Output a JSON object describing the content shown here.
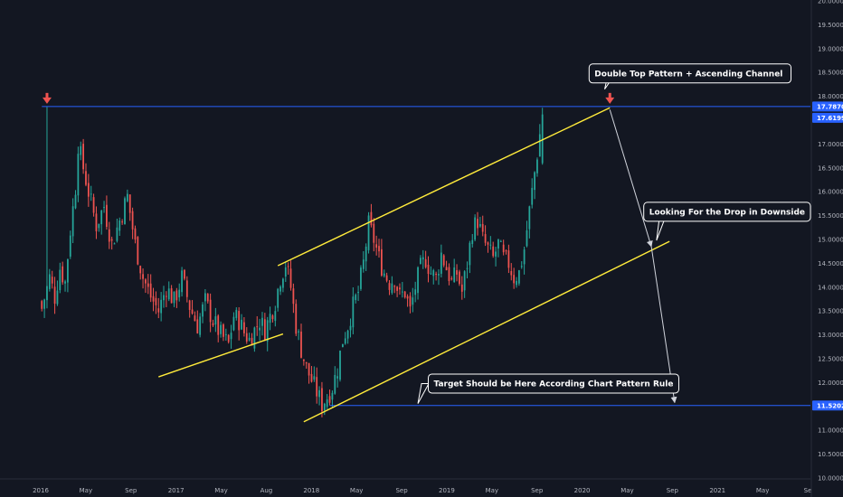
{
  "chart_data": {
    "type": "candlestick",
    "title": "",
    "instrument": "",
    "y_axis": {
      "ticks": [
        "20.00000",
        "19.50000",
        "19.00000",
        "18.50000",
        "18.00000",
        "17.50000",
        "17.00000",
        "16.50000",
        "16.00000",
        "15.50000",
        "15.00000",
        "14.50000",
        "14.00000",
        "13.50000",
        "13.00000",
        "12.50000",
        "12.00000",
        "11.50000",
        "11.00000",
        "10.50000",
        "10.00000"
      ],
      "ylim": [
        10.0,
        20.0
      ]
    },
    "x_axis": {
      "ticks": [
        "2016",
        "May",
        "Sep",
        "2017",
        "May",
        "Aug",
        "2018",
        "May",
        "Sep",
        "2019",
        "May",
        "Sep",
        "2020",
        "May",
        "Sep",
        "2021",
        "May",
        "Se"
      ],
      "start": "2016-01-04",
      "end": "2021-10-01"
    },
    "price_labels": [
      {
        "name": "resistance",
        "text": "17.78703",
        "value": 17.78703,
        "color": "#2962ff"
      },
      {
        "name": "last-price",
        "text": "17.61990",
        "value": 17.6199,
        "color": "#2962ff"
      },
      {
        "name": "target",
        "text": "11.52027",
        "value": 11.52027,
        "color": "#2962ff"
      }
    ],
    "horizontal_lines": [
      {
        "name": "resistance-line",
        "value": 17.78703,
        "from": "2016-01-04",
        "to": "2021-10-01",
        "color": "#2962ff"
      },
      {
        "name": "target-line",
        "value": 11.52027,
        "from": "2018-02-19",
        "to": "2021-10-01",
        "color": "#2962ff"
      }
    ],
    "trend_lines": [
      {
        "name": "channel-upper",
        "from": {
          "date": "2017-10-02",
          "value": 14.45
        },
        "to": {
          "date": "2020-03-16",
          "value": 17.76
        },
        "color": "#ffeb3b"
      },
      {
        "name": "channel-lower",
        "from": {
          "date": "2017-12-11",
          "value": 11.18
        },
        "to": {
          "date": "2020-08-24",
          "value": 14.96
        },
        "color": "#ffeb3b"
      },
      {
        "name": "left-support",
        "from": {
          "date": "2016-11-14",
          "value": 12.12
        },
        "to": {
          "date": "2017-10-16",
          "value": 13.02
        },
        "color": "#ffeb3b"
      }
    ],
    "arrows": [
      {
        "name": "drop-arrow-1",
        "from": {
          "date": "2020-03-16",
          "value": 17.72
        },
        "to": {
          "date": "2020-07-06",
          "value": 14.85
        }
      },
      {
        "name": "drop-arrow-2",
        "from": {
          "date": "2020-07-06",
          "value": 14.85
        },
        "to": {
          "date": "2020-09-07",
          "value": 11.58
        }
      }
    ],
    "markers": [
      {
        "name": "top-marker-1",
        "date": "2016-01-18",
        "value": 17.78703
      },
      {
        "name": "top-marker-2",
        "date": "2020-03-16",
        "value": 17.78703
      }
    ],
    "annotations": [
      {
        "name": "double-top-callout",
        "text": "Double Top Pattern  + Ascending Channel",
        "date": "2020-01-20",
        "value": 18.48,
        "pointer": {
          "date": "2020-03-02",
          "value": 18.15
        }
      },
      {
        "name": "drop-callout",
        "text": "Looking For the Drop in Downside",
        "date": "2020-09-07",
        "value": 15.58,
        "pointer": {
          "date": "2020-07-20",
          "value": 14.98
        }
      },
      {
        "name": "target-callout",
        "text": "Target Should be Here According Chart Pattern Rule",
        "date": "2018-11-12",
        "value": 11.98,
        "pointer": {
          "date": "2018-10-15",
          "value": 11.56
        }
      }
    ],
    "closes": [
      [
        0,
        13.55
      ],
      [
        3,
        14.2
      ],
      [
        5,
        13.8
      ],
      [
        7,
        14.4
      ],
      [
        9,
        14.1
      ],
      [
        11,
        15.2
      ],
      [
        13,
        16.1
      ],
      [
        14,
        17.0
      ],
      [
        16,
        16.5
      ],
      [
        18,
        16.0
      ],
      [
        21,
        15.3
      ],
      [
        24,
        15.7
      ],
      [
        27,
        14.9
      ],
      [
        30,
        15.4
      ],
      [
        33,
        15.9
      ],
      [
        36,
        14.9
      ],
      [
        39,
        14.2
      ],
      [
        42,
        13.8
      ],
      [
        45,
        13.5
      ],
      [
        48,
        14.0
      ],
      [
        51,
        13.7
      ],
      [
        54,
        14.2
      ],
      [
        57,
        13.6
      ],
      [
        60,
        13.2
      ],
      [
        63,
        13.7
      ],
      [
        66,
        13.3
      ],
      [
        69,
        13.0
      ],
      [
        72,
        12.8
      ],
      [
        74,
        13.4
      ],
      [
        76,
        13.3
      ],
      [
        78,
        13.05
      ],
      [
        80,
        12.9
      ],
      [
        82,
        13.1
      ],
      [
        84,
        13.3
      ],
      [
        86,
        13.1
      ],
      [
        88,
        13.4
      ],
      [
        90,
        13.7
      ],
      [
        92,
        14.2
      ],
      [
        94,
        14.5
      ],
      [
        96,
        14.0
      ],
      [
        98,
        13.2
      ],
      [
        100,
        12.7
      ],
      [
        102,
        12.3
      ],
      [
        104,
        12.05
      ],
      [
        106,
        11.8
      ],
      [
        108,
        11.55
      ],
      [
        110,
        11.7
      ],
      [
        112,
        11.9
      ],
      [
        114,
        12.3
      ],
      [
        116,
        12.9
      ],
      [
        118,
        13.2
      ],
      [
        120,
        13.6
      ],
      [
        122,
        13.9
      ],
      [
        124,
        14.5
      ],
      [
        126,
        15.3
      ],
      [
        128,
        15.0
      ],
      [
        130,
        14.6
      ],
      [
        132,
        14.3
      ],
      [
        134,
        14.1
      ],
      [
        136,
        14.2
      ],
      [
        138,
        13.8
      ],
      [
        140,
        13.9
      ],
      [
        142,
        13.5
      ],
      [
        144,
        14.0
      ],
      [
        146,
        14.4
      ],
      [
        148,
        14.6
      ],
      [
        150,
        14.3
      ],
      [
        152,
        14.2
      ],
      [
        154,
        14.7
      ],
      [
        156,
        14.4
      ],
      [
        158,
        14.1
      ],
      [
        160,
        14.3
      ],
      [
        162,
        13.9
      ],
      [
        164,
        14.5
      ],
      [
        166,
        15.2
      ],
      [
        168,
        15.4
      ],
      [
        170,
        15.0
      ],
      [
        172,
        14.8
      ],
      [
        174,
        14.6
      ],
      [
        176,
        14.9
      ],
      [
        178,
        14.6
      ],
      [
        180,
        14.5
      ],
      [
        182,
        14.2
      ],
      [
        184,
        14.3
      ],
      [
        186,
        14.8
      ],
      [
        188,
        15.6
      ],
      [
        190,
        16.4
      ],
      [
        192,
        17.2
      ],
      [
        193,
        17.62
      ]
    ],
    "week_start": "2016-01-04"
  }
}
